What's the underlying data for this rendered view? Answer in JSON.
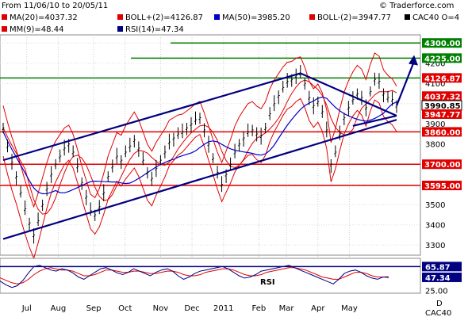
{
  "header": {
    "date_range": "From 11/06/10 to 20/05/11",
    "copyright": "© Traderforce.com"
  },
  "legend": [
    {
      "label": "MA(20)=4037.32",
      "color": "#e00000"
    },
    {
      "label": "BOLL+(2)=4126.87",
      "color": "#e00000"
    },
    {
      "label": "MA(50)=3985.20",
      "color": "#0000cc"
    },
    {
      "label": "BOLL-(2)=3947.77",
      "color": "#e00000"
    },
    {
      "label": "CAC40 O=4",
      "color": "#000000"
    },
    {
      "label": "MM(9)=48.44",
      "color": "#e00000"
    },
    {
      "label": "RSI(14)=47.34",
      "color": "#000080"
    }
  ],
  "indicator_label": "RSI",
  "footer": {
    "period": "D",
    "symbol": "CAC40"
  },
  "colors": {
    "price": "#000000",
    "boll": "#e00000",
    "ma50": "#0000cc",
    "trend": "#000080",
    "support": "#e00000",
    "resistance": "#008000",
    "rsi": "#000080",
    "mm9": "#e00000"
  },
  "chart_data": [
    {
      "type": "candlestick-line",
      "title": "",
      "xlabel": "",
      "ylabel": "",
      "x_ticks": [
        "Jul",
        "Aug",
        "Sep",
        "Oct",
        "Nov",
        "Dec",
        "2011",
        "Feb",
        "Mar",
        "Apr",
        "May"
      ],
      "y_ticks": [
        3300,
        3400,
        3500,
        3600,
        3700,
        3800,
        3900,
        4000,
        4100,
        4200,
        4300
      ],
      "ylim": [
        3250,
        4340
      ],
      "series": [
        {
          "name": "CAC40",
          "points": [
            [
              0,
              3880
            ],
            [
              1,
              3790
            ],
            [
              2,
              3710
            ],
            [
              3,
              3640
            ],
            [
              4,
              3560
            ],
            [
              5,
              3480
            ],
            [
              6,
              3410
            ],
            [
              7,
              3350
            ],
            [
              8,
              3420
            ],
            [
              9,
              3500
            ],
            [
              10,
              3580
            ],
            [
              11,
              3650
            ],
            [
              12,
              3700
            ],
            [
              13,
              3740
            ],
            [
              14,
              3780
            ],
            [
              15,
              3800
            ],
            [
              16,
              3760
            ],
            [
              17,
              3690
            ],
            [
              18,
              3610
            ],
            [
              19,
              3540
            ],
            [
              20,
              3470
            ],
            [
              21,
              3450
            ],
            [
              22,
              3490
            ],
            [
              23,
              3560
            ],
            [
              24,
              3640
            ],
            [
              25,
              3690
            ],
            [
              26,
              3740
            ],
            [
              27,
              3720
            ],
            [
              28,
              3760
            ],
            [
              29,
              3790
            ],
            [
              30,
              3820
            ],
            [
              31,
              3780
            ],
            [
              32,
              3720
            ],
            [
              33,
              3660
            ],
            [
              34,
              3630
            ],
            [
              35,
              3680
            ],
            [
              36,
              3720
            ],
            [
              37,
              3760
            ],
            [
              38,
              3810
            ],
            [
              39,
              3830
            ],
            [
              40,
              3850
            ],
            [
              41,
              3860
            ],
            [
              42,
              3880
            ],
            [
              43,
              3900
            ],
            [
              44,
              3920
            ],
            [
              45,
              3930
            ],
            [
              46,
              3870
            ],
            [
              47,
              3800
            ],
            [
              48,
              3730
            ],
            [
              49,
              3660
            ],
            [
              50,
              3600
            ],
            [
              51,
              3650
            ],
            [
              52,
              3700
            ],
            [
              53,
              3760
            ],
            [
              54,
              3800
            ],
            [
              55,
              3830
            ],
            [
              56,
              3860
            ],
            [
              57,
              3870
            ],
            [
              58,
              3850
            ],
            [
              59,
              3840
            ],
            [
              60,
              3880
            ],
            [
              61,
              3950
            ],
            [
              62,
              4000
            ],
            [
              63,
              4040
            ],
            [
              64,
              4080
            ],
            [
              65,
              4110
            ],
            [
              66,
              4120
            ],
            [
              67,
              4140
            ],
            [
              68,
              4150
            ],
            [
              69,
              4100
            ],
            [
              70,
              4030
            ],
            [
              71,
              3990
            ],
            [
              72,
              4010
            ],
            [
              73,
              3960
            ],
            [
              74,
              3870
            ],
            [
              75,
              3700
            ],
            [
              76,
              3760
            ],
            [
              77,
              3850
            ],
            [
              78,
              3930
            ],
            [
              79,
              3980
            ],
            [
              80,
              4020
            ],
            [
              81,
              4050
            ],
            [
              82,
              4030
            ],
            [
              83,
              3980
            ],
            [
              84,
              4060
            ],
            [
              85,
              4120
            ],
            [
              86,
              4110
            ],
            [
              87,
              4050
            ],
            [
              88,
              4030
            ],
            [
              89,
              4020
            ],
            [
              90,
              3991
            ]
          ]
        }
      ],
      "support_lines": [
        3860,
        3700,
        3595
      ],
      "resistance_lines": [
        4300,
        4225,
        4127
      ],
      "price_tags": [
        {
          "value": "4300.00",
          "level": 4300,
          "kind": "resistance"
        },
        {
          "value": "4225.00",
          "level": 4225,
          "kind": "resistance"
        },
        {
          "value": "4126.87",
          "level": 4127,
          "kind": "boll"
        },
        {
          "value": "4037.32",
          "level": 4037,
          "kind": "boll"
        },
        {
          "value": "3990.85",
          "level": 3991,
          "kind": "price"
        },
        {
          "value": "3947.77",
          "level": 3948,
          "kind": "boll"
        },
        {
          "value": "3860.00",
          "level": 3860,
          "kind": "support"
        },
        {
          "value": "3700.00",
          "level": 3700,
          "kind": "support"
        },
        {
          "value": "3595.00",
          "level": 3595,
          "kind": "support"
        }
      ],
      "channel": {
        "upper": [
          [
            0,
            3720
          ],
          [
            68,
            4150
          ]
        ],
        "lower": [
          [
            0,
            3330
          ],
          [
            90,
            3920
          ]
        ]
      },
      "triangle": {
        "upper": [
          [
            68,
            4150
          ],
          [
            90,
            3940
          ]
        ],
        "lower": [
          [
            80,
            3890
          ],
          [
            90,
            3940
          ]
        ]
      },
      "arrow": {
        "from": [
          90,
          3990
        ],
        "to": [
          94,
          4240
        ]
      }
    },
    {
      "type": "line",
      "title": "",
      "y_ticks": [
        25.0
      ],
      "ylim": [
        20,
        80
      ],
      "levels": [
        {
          "value": "65.87",
          "level": 65.87,
          "kind": "upper"
        },
        {
          "value": "47.34",
          "level": 47.34,
          "kind": "rsi"
        }
      ],
      "series": [
        {
          "name": "RSI(14)",
          "values": [
            48,
            40,
            34,
            30,
            33,
            42,
            55,
            66,
            68,
            64,
            60,
            58,
            62,
            60,
            55,
            48,
            44,
            50,
            56,
            62,
            64,
            60,
            55,
            52,
            56,
            62,
            58,
            54,
            50,
            56,
            60,
            62,
            58,
            50,
            44,
            48,
            54,
            58,
            60,
            62,
            64,
            66,
            62,
            56,
            50,
            46,
            48,
            52,
            58,
            60,
            62,
            64,
            66,
            68,
            64,
            60,
            56,
            52,
            48,
            44,
            40,
            36,
            44,
            54,
            58,
            60,
            56,
            50,
            46,
            44,
            48,
            47
          ]
        },
        {
          "name": "MM(9)",
          "values": [
            50,
            46,
            42,
            38,
            36,
            38,
            44,
            52,
            58,
            62,
            64,
            62,
            60,
            60,
            58,
            54,
            50,
            50,
            52,
            56,
            60,
            60,
            58,
            56,
            56,
            58,
            58,
            56,
            54,
            54,
            56,
            58,
            58,
            56,
            52,
            50,
            50,
            52,
            56,
            58,
            60,
            62,
            62,
            60,
            56,
            52,
            50,
            50,
            52,
            56,
            58,
            60,
            62,
            64,
            64,
            62,
            60,
            56,
            52,
            48,
            46,
            44,
            44,
            48,
            52,
            56,
            56,
            54,
            50,
            48,
            48,
            48.44
          ]
        }
      ]
    }
  ]
}
